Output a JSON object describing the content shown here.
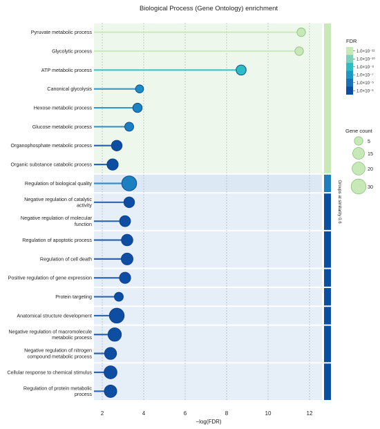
{
  "chart_data": {
    "type": "lollipop",
    "title": "Biological Process (Gene Ontology) enrichment",
    "xlabel": "−log(FDR)",
    "x_ticks": [
      2,
      4,
      6,
      8,
      10,
      12
    ],
    "xlim": [
      1.6,
      12.6
    ],
    "grid": "vertical dashed",
    "terms": [
      {
        "label": "Pyruvate metabolic process",
        "value": 11.6,
        "gene_count": 5,
        "group": 1,
        "color": "#c6e9b7"
      },
      {
        "label": "Glycolytic process",
        "value": 11.5,
        "gene_count": 5,
        "group": 1,
        "color": "#c6e9b7"
      },
      {
        "label": "ATP metabolic process",
        "value": 8.7,
        "gene_count": 9,
        "group": 1,
        "color": "#2bbcc4"
      },
      {
        "label": "Canonical glycolysis",
        "value": 3.8,
        "gene_count": 4,
        "group": 1,
        "color": "#1c8dc4"
      },
      {
        "label": "Hexose metabolic process",
        "value": 3.7,
        "gene_count": 7,
        "group": 1,
        "color": "#1a83c0"
      },
      {
        "label": "Glucose metabolic process",
        "value": 3.3,
        "gene_count": 6,
        "group": 1,
        "color": "#1a7fbe"
      },
      {
        "label": "Organophosphate metabolic process",
        "value": 2.7,
        "gene_count": 11,
        "group": 1,
        "color": "#0d4ea3"
      },
      {
        "label": "Organic substance catabolic process",
        "value": 2.5,
        "gene_count": 13,
        "group": 1,
        "color": "#0d4ea3"
      },
      {
        "label": "Regulation of biological quality",
        "value": 3.3,
        "gene_count": 30,
        "group": 2,
        "color": "#1a80bf"
      },
      {
        "label": "Negative regulation of catalytic activity",
        "value": 3.3,
        "gene_count": 11,
        "group": 3,
        "color": "#0d4ea3"
      },
      {
        "label": "Negative regulation of molecular function",
        "value": 3.1,
        "gene_count": 12,
        "group": 3,
        "color": "#0d4ea3"
      },
      {
        "label": "Regulation of apoptotic process",
        "value": 3.2,
        "gene_count": 14,
        "group": 4,
        "color": "#0d4ea3"
      },
      {
        "label": "Regulation of cell death",
        "value": 3.2,
        "gene_count": 15,
        "group": 4,
        "color": "#0d4ea3"
      },
      {
        "label": "Positive regulation of gene expression",
        "value": 3.1,
        "gene_count": 13,
        "group": 5,
        "color": "#0d4ea3"
      },
      {
        "label": "Protein targeting",
        "value": 2.8,
        "gene_count": 6,
        "group": 6,
        "color": "#0d4ea3"
      },
      {
        "label": "Anatomical structure development",
        "value": 2.7,
        "gene_count": 30,
        "group": 7,
        "color": "#0d4ea3"
      },
      {
        "label": "Negative regulation of macromolecule metabolic process",
        "value": 2.6,
        "gene_count": 22,
        "group": 8,
        "color": "#0d4ea3"
      },
      {
        "label": "Negative regulation of nitrogen compound metabolic process",
        "value": 2.4,
        "gene_count": 16,
        "group": 8,
        "color": "#0d4ea3"
      },
      {
        "label": "Cellular response to chemical stimulus",
        "value": 2.4,
        "gene_count": 20,
        "group": 9,
        "color": "#0d4ea3"
      },
      {
        "label": "Regulation of protein metabolic process",
        "value": 2.4,
        "gene_count": 18,
        "group": 9,
        "color": "#0d4ea3"
      }
    ],
    "label_lines": [
      [
        "Pyruvate metabolic process"
      ],
      [
        "Glycolytic process"
      ],
      [
        "ATP metabolic process"
      ],
      [
        "Canonical glycolysis"
      ],
      [
        "Hexose metabolic process"
      ],
      [
        "Glucose metabolic process"
      ],
      [
        "Organophosphate metabolic process"
      ],
      [
        "Organic substance catabolic process"
      ],
      [
        "Regulation of biological quality"
      ],
      [
        "Negative regulation of catalytic",
        "activity"
      ],
      [
        "Negative regulation of molecular",
        "function"
      ],
      [
        "Regulation of apoptotic process"
      ],
      [
        "Regulation of cell death"
      ],
      [
        "Positive regulation of gene expression"
      ],
      [
        "Protein targeting"
      ],
      [
        "Anatomical structure development"
      ],
      [
        "Negative regulation of macromolecule",
        "metabolic process"
      ],
      [
        "Negative regulation of nitrogen",
        "compound metabolic process"
      ],
      [
        "Cellular response to chemical stimulus"
      ],
      [
        "Regulation of protein metabolic",
        "process"
      ]
    ],
    "groups": [
      {
        "id": 1,
        "color": "#c6e9b7",
        "bg": "#eef7ec"
      },
      {
        "id": 2,
        "color": "#1f7fbd",
        "bg": "#dce9f5"
      },
      {
        "id": 3,
        "color": "#0b4fa0",
        "bg": "#e6eef8"
      },
      {
        "id": 4,
        "color": "#0b4fa0",
        "bg": "#e6eef8"
      },
      {
        "id": 5,
        "color": "#0b4fa0",
        "bg": "#e6eef8"
      },
      {
        "id": 6,
        "color": "#0b4fa0",
        "bg": "#e6eef8"
      },
      {
        "id": 7,
        "color": "#0b4fa0",
        "bg": "#e6eef8"
      },
      {
        "id": 8,
        "color": "#0b4fa0",
        "bg": "#e6eef8"
      },
      {
        "id": 9,
        "color": "#0b4fa0",
        "bg": "#e6eef8"
      }
    ],
    "group_axis_label": "Groups at similarity 0.6",
    "legend_fdr": {
      "title": "FDR",
      "labels": [
        "1.0×10⁻¹²",
        "1.0×10⁻¹⁰",
        "1.0×10⁻⁸",
        "1.0×10⁻⁷",
        "1.0×10⁻⁵",
        "1.0×10⁻³"
      ],
      "colors": [
        "#c6e9b7",
        "#7fd0bb",
        "#2bbcc4",
        "#1a98c6",
        "#1a72b6",
        "#0b4fa0"
      ]
    },
    "legend_gene_count": {
      "title": "Gene count",
      "values": [
        5,
        15,
        20,
        30
      ]
    }
  }
}
